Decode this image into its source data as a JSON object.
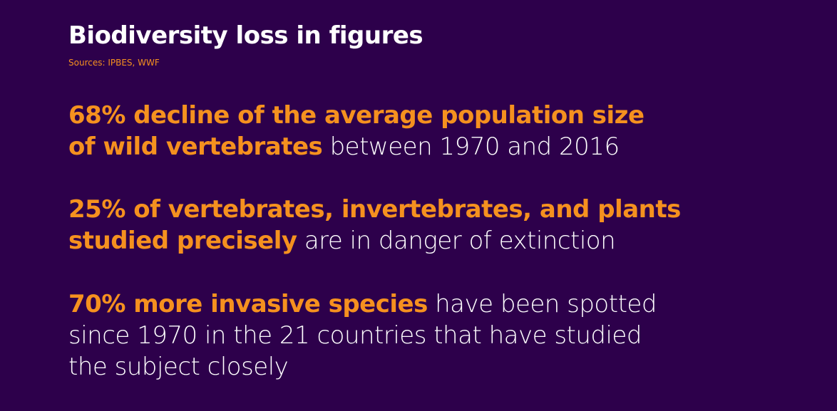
{
  "title": "Biodiversity loss in figures",
  "sources": "Sources: IPBES, WWF",
  "colors": {
    "background": "#2d004b",
    "highlight": "#f5911f",
    "text": "#ffffff"
  },
  "facts": [
    {
      "line1_highlight": "68% decline of the average population size",
      "line2_highlight": "of wild vertebrates",
      "line2_rest": " between 1970 and 2016"
    },
    {
      "line1_highlight": "25% of vertebrates, invertebrates, and plants",
      "line2_highlight": "studied precisely",
      "line2_rest": " are in danger of extinction"
    },
    {
      "line1_highlight": "70% more invasive species",
      "line1_rest": " have been spotted",
      "line2": "since 1970 in the 21 countries that have studied",
      "line3": "the subject closely"
    }
  ]
}
